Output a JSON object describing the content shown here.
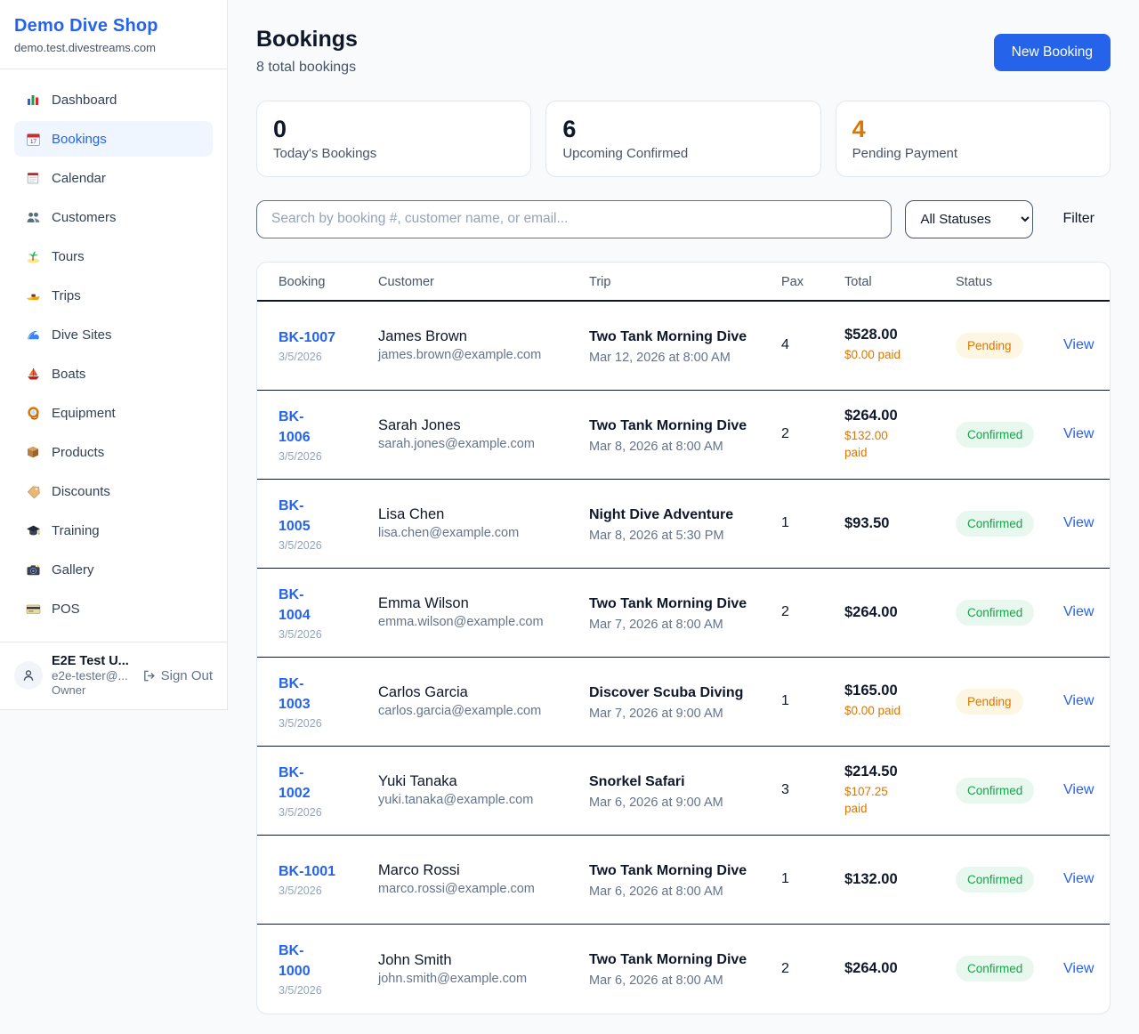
{
  "colors": {
    "accent": "#2563eb",
    "page_bg": "#f8fafc",
    "row_border": "#0f172a",
    "orange": "#d97706",
    "pending_bg": "#fdf6e3",
    "pending_text": "#d97706",
    "confirmed_bg": "#e8f8ee",
    "confirmed_text": "#16a34a"
  },
  "sidebar": {
    "brand": {
      "title": "Demo Dive Shop",
      "domain": "demo.test.divestreams.com"
    },
    "items": [
      {
        "id": "dashboard",
        "icon": "bar-chart-icon",
        "label": "Dashboard",
        "active": false
      },
      {
        "id": "bookings",
        "icon": "calendar-date-icon",
        "label": "Bookings",
        "active": true
      },
      {
        "id": "calendar",
        "icon": "notepad-calendar-icon",
        "label": "Calendar",
        "active": false
      },
      {
        "id": "customers",
        "icon": "people-icon",
        "label": "Customers",
        "active": false
      },
      {
        "id": "tours",
        "icon": "island-icon",
        "label": "Tours",
        "active": false
      },
      {
        "id": "trips",
        "icon": "speedboat-icon",
        "label": "Trips",
        "active": false
      },
      {
        "id": "dive-sites",
        "icon": "wave-icon",
        "label": "Dive Sites",
        "active": false
      },
      {
        "id": "boats",
        "icon": "sailboat-icon",
        "label": "Boats",
        "active": false
      },
      {
        "id": "equipment",
        "icon": "dive-mask-icon",
        "label": "Equipment",
        "active": false
      },
      {
        "id": "products",
        "icon": "package-icon",
        "label": "Products",
        "active": false
      },
      {
        "id": "discounts",
        "icon": "tag-icon",
        "label": "Discounts",
        "active": false
      },
      {
        "id": "training",
        "icon": "graduation-cap-icon",
        "label": "Training",
        "active": false
      },
      {
        "id": "gallery",
        "icon": "camera-icon",
        "label": "Gallery",
        "active": false
      },
      {
        "id": "pos",
        "icon": "credit-card-icon",
        "label": "POS",
        "active": false
      }
    ],
    "user": {
      "name": "E2E Test U...",
      "email": "e2e-tester@...",
      "role": "Owner",
      "sign_out_label": "Sign Out"
    }
  },
  "header": {
    "title": "Bookings",
    "subtitle": "8 total bookings",
    "new_booking_label": "New Booking"
  },
  "stats": [
    {
      "value": "0",
      "label": "Today's Bookings",
      "highlight": false
    },
    {
      "value": "6",
      "label": "Upcoming Confirmed",
      "highlight": false
    },
    {
      "value": "4",
      "label": "Pending Payment",
      "highlight": true
    }
  ],
  "controls": {
    "search_placeholder": "Search by booking #, customer name, or email...",
    "status_filter_value": "All Statuses",
    "filter_label": "Filter"
  },
  "table": {
    "columns": [
      "Booking",
      "Customer",
      "Trip",
      "Pax",
      "Total",
      "Status",
      ""
    ],
    "rows": [
      {
        "booking_id": "BK-1007",
        "booking_date": "3/5/2026",
        "customer_name": "James Brown",
        "customer_email": "james.brown@example.com",
        "trip_name": "Two Tank Morning Dive",
        "trip_datetime": "Mar 12, 2026 at 8:00 AM",
        "pax": "4",
        "total": "$528.00",
        "paid": "$0.00 paid",
        "status": "Pending",
        "status_type": "pending",
        "action": "View"
      },
      {
        "booking_id": "BK-\n1006",
        "booking_date": "3/5/2026",
        "customer_name": "Sarah Jones",
        "customer_email": "sarah.jones@example.com",
        "trip_name": "Two Tank Morning Dive",
        "trip_datetime": "Mar 8, 2026 at 8:00 AM",
        "pax": "2",
        "total": "$264.00",
        "paid": "$132.00 paid",
        "status": "Confirmed",
        "status_type": "confirmed",
        "action": "View"
      },
      {
        "booking_id": "BK-\n1005",
        "booking_date": "3/5/2026",
        "customer_name": "Lisa Chen",
        "customer_email": "lisa.chen@example.com",
        "trip_name": "Night Dive Adventure",
        "trip_datetime": "Mar 8, 2026 at 5:30 PM",
        "pax": "1",
        "total": "$93.50",
        "paid": "",
        "status": "Confirmed",
        "status_type": "confirmed",
        "action": "View"
      },
      {
        "booking_id": "BK-\n1004",
        "booking_date": "3/5/2026",
        "customer_name": "Emma Wilson",
        "customer_email": "emma.wilson@example.com",
        "trip_name": "Two Tank Morning Dive",
        "trip_datetime": "Mar 7, 2026 at 8:00 AM",
        "pax": "2",
        "total": "$264.00",
        "paid": "",
        "status": "Confirmed",
        "status_type": "confirmed",
        "action": "View"
      },
      {
        "booking_id": "BK-\n1003",
        "booking_date": "3/5/2026",
        "customer_name": "Carlos Garcia",
        "customer_email": "carlos.garcia@example.com",
        "trip_name": "Discover Scuba Diving",
        "trip_datetime": "Mar 7, 2026 at 9:00 AM",
        "pax": "1",
        "total": "$165.00",
        "paid": "$0.00 paid",
        "status": "Pending",
        "status_type": "pending",
        "action": "View"
      },
      {
        "booking_id": "BK-\n1002",
        "booking_date": "3/5/2026",
        "customer_name": "Yuki Tanaka",
        "customer_email": "yuki.tanaka@example.com",
        "trip_name": "Snorkel Safari",
        "trip_datetime": "Mar 6, 2026 at 9:00 AM",
        "pax": "3",
        "total": "$214.50",
        "paid": "$107.25 paid",
        "status": "Confirmed",
        "status_type": "confirmed",
        "action": "View"
      },
      {
        "booking_id": "BK-1001",
        "booking_date": "3/5/2026",
        "customer_name": "Marco Rossi",
        "customer_email": "marco.rossi@example.com",
        "trip_name": "Two Tank Morning Dive",
        "trip_datetime": "Mar 6, 2026 at 8:00 AM",
        "pax": "1",
        "total": "$132.00",
        "paid": "",
        "status": "Confirmed",
        "status_type": "confirmed",
        "action": "View"
      },
      {
        "booking_id": "BK-\n1000",
        "booking_date": "3/5/2026",
        "customer_name": "John Smith",
        "customer_email": "john.smith@example.com",
        "trip_name": "Two Tank Morning Dive",
        "trip_datetime": "Mar 6, 2026 at 8:00 AM",
        "pax": "2",
        "total": "$264.00",
        "paid": "",
        "status": "Confirmed",
        "status_type": "confirmed",
        "action": "View"
      }
    ]
  }
}
